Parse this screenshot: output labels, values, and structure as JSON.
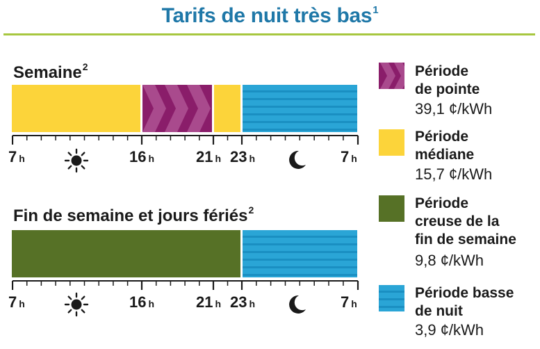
{
  "title": {
    "text": "Tarifs de nuit très bas",
    "sup": "1"
  },
  "weekday": {
    "label": "Semaine",
    "sup": "2",
    "ticks": [
      {
        "hour": "7",
        "unit": "h"
      },
      {
        "hour": "16",
        "unit": "h"
      },
      {
        "hour": "21",
        "unit": "h"
      },
      {
        "hour": "23",
        "unit": "h"
      },
      {
        "hour": "7",
        "unit": "h"
      }
    ]
  },
  "weekend": {
    "label": "Fin de semaine et jours fériés",
    "sup": "2",
    "ticks": [
      {
        "hour": "7",
        "unit": "h"
      },
      {
        "hour": "16",
        "unit": "h"
      },
      {
        "hour": "21",
        "unit": "h"
      },
      {
        "hour": "23",
        "unit": "h"
      },
      {
        "hour": "7",
        "unit": "h"
      }
    ]
  },
  "legend": [
    {
      "line1": "Période",
      "line2": "de pointe",
      "line3": "",
      "price": "39,1 ¢/kWh",
      "color": "#8a1d6a"
    },
    {
      "line1": "Période",
      "line2": "médiane",
      "line3": "",
      "price": "15,7 ¢/kWh",
      "color": "#fcd43a"
    },
    {
      "line1": "Période",
      "line2": "creuse de la",
      "line3": "fin de semaine",
      "price": "9,8 ¢/kWh",
      "color": "#567126"
    },
    {
      "line1": "Période basse",
      "line2": "de nuit",
      "line3": "",
      "price": "3,9 ¢/kWh",
      "color": "#1a8fc2"
    }
  ],
  "colors": {
    "title": "#1f78a8",
    "rule": "#a7c73f",
    "on_peak": "#8a1d6a",
    "mid_peak": "#fcd43a",
    "weekend_off_peak": "#567126",
    "ultra_low": "#1a8fc2"
  },
  "icons": {
    "day": "sun-icon",
    "night": "moon-icon"
  }
}
